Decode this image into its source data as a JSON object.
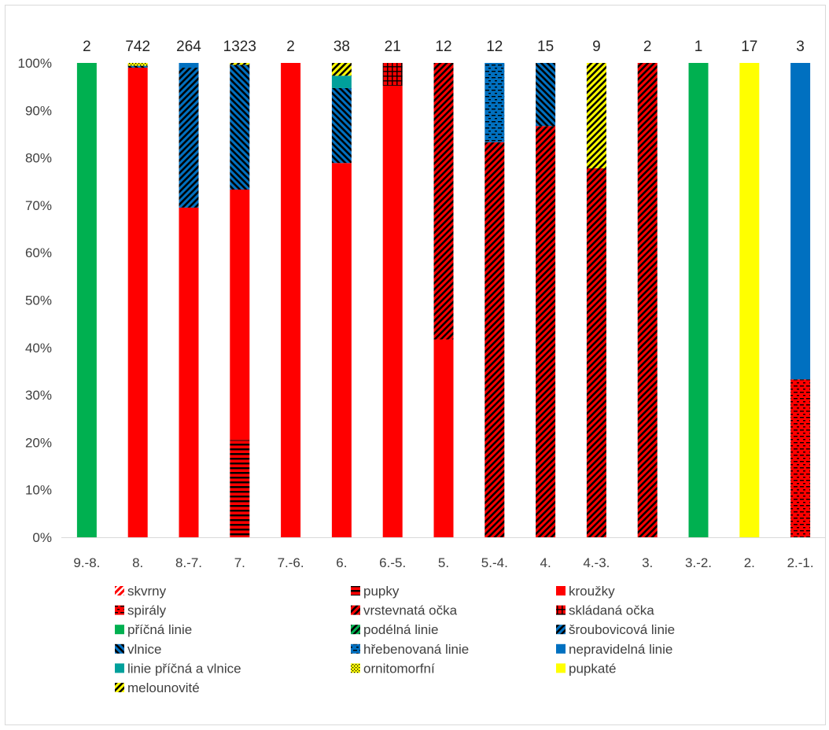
{
  "chart_data": {
    "type": "bar",
    "stacked": "percent",
    "title": "",
    "xlabel": "",
    "ylabel": "",
    "ylim": [
      0,
      100
    ],
    "y_ticks": [
      "0%",
      "10%",
      "20%",
      "30%",
      "40%",
      "50%",
      "60%",
      "70%",
      "80%",
      "90%",
      "100%"
    ],
    "grid": false,
    "legend_position": "bottom",
    "categories": [
      "9.-8.",
      "8.",
      "8.-7.",
      "7.",
      "7.-6.",
      "6.",
      "6.-5.",
      "5.",
      "5.-4.",
      "4.",
      "4.-3.",
      "3.",
      "3.-2.",
      "2.",
      "2.-1."
    ],
    "totals": [
      "2",
      "742",
      "264",
      "1323",
      "2",
      "38",
      "21",
      "12",
      "12",
      "15",
      "9",
      "2",
      "1",
      "17",
      "3"
    ],
    "series": [
      {
        "name": "skvrny",
        "color": "#ff0000",
        "pattern": "diag-white",
        "values": [
          0,
          0,
          0,
          0,
          0,
          0,
          0,
          0,
          0,
          0,
          0,
          0,
          0,
          0,
          0
        ]
      },
      {
        "name": "pupky",
        "color": "#ff0000",
        "pattern": "hstripe-black",
        "values": [
          0,
          0,
          0,
          20.5,
          0,
          0,
          0,
          0,
          0,
          0,
          0,
          0,
          0,
          0,
          0
        ]
      },
      {
        "name": "kroužky",
        "color": "#ff0000",
        "pattern": "solid",
        "values": [
          0,
          99.0,
          69.5,
          52.8,
          100,
          78.9,
          95.2,
          41.7,
          0,
          0,
          0,
          0,
          0,
          0,
          0
        ]
      },
      {
        "name": "spirály",
        "color": "#ff0000",
        "pattern": "dash-black",
        "values": [
          0,
          0,
          0,
          0,
          0,
          0,
          0,
          0,
          0,
          0,
          0,
          0,
          0,
          0,
          33.3
        ]
      },
      {
        "name": "vrstevnatá očka",
        "color": "#ff0000",
        "pattern": "diag-black",
        "values": [
          0,
          0,
          0,
          0,
          0,
          0,
          0,
          58.3,
          83.3,
          86.7,
          77.8,
          100,
          0,
          0,
          0
        ]
      },
      {
        "name": "skládaná očka",
        "color": "#ff0000",
        "pattern": "grid-black",
        "values": [
          0,
          0,
          0,
          0,
          0,
          0,
          4.8,
          0,
          0,
          0,
          0,
          0,
          0,
          0,
          0
        ]
      },
      {
        "name": "příčná linie",
        "color": "#00b050",
        "pattern": "solid",
        "values": [
          100,
          0,
          0,
          0,
          0,
          0,
          0,
          0,
          0,
          0,
          0,
          0,
          100,
          0,
          0
        ]
      },
      {
        "name": "podélná linie",
        "color": "#00b050",
        "pattern": "diag-black",
        "values": [
          0,
          0,
          0,
          0,
          0,
          0,
          0,
          0,
          0,
          0,
          0,
          0,
          0,
          0,
          0
        ]
      },
      {
        "name": "šroubovicová linie",
        "color": "#0070c0",
        "pattern": "diag-black",
        "values": [
          0,
          0,
          29.5,
          0,
          0,
          0,
          0,
          0,
          0,
          0,
          0,
          0,
          0,
          0,
          0
        ]
      },
      {
        "name": "vlnice",
        "color": "#0070c0",
        "pattern": "diag-black-rev",
        "values": [
          0,
          0.4,
          0,
          26.3,
          0,
          15.8,
          0,
          0,
          0,
          13.3,
          0,
          0,
          0,
          0,
          0
        ]
      },
      {
        "name": "hřebenovaná linie",
        "color": "#0070c0",
        "pattern": "dash-black",
        "values": [
          0,
          0,
          0,
          0,
          0,
          0,
          0,
          0,
          16.7,
          0,
          0,
          0,
          0,
          0,
          0
        ]
      },
      {
        "name": "nepravidelná linie",
        "color": "#0070c0",
        "pattern": "solid",
        "values": [
          0,
          0,
          1.0,
          0,
          0,
          0,
          0,
          0,
          0,
          0,
          0,
          0,
          0,
          0,
          66.7
        ]
      },
      {
        "name": "linie příčná a vlnice",
        "color": "#00a09b",
        "pattern": "solid",
        "values": [
          0,
          0,
          0,
          0,
          0,
          2.6,
          0,
          0,
          0,
          0,
          0,
          0,
          0,
          0,
          0
        ]
      },
      {
        "name": "ornitomorfní",
        "color": "#ffff00",
        "pattern": "dots-black",
        "values": [
          0,
          0.6,
          0,
          0,
          0,
          0,
          0,
          0,
          0,
          0,
          0,
          0,
          0,
          0,
          0
        ]
      },
      {
        "name": "pupkaté",
        "color": "#ffff00",
        "pattern": "solid",
        "values": [
          0,
          0,
          0,
          0,
          0,
          0,
          0,
          0,
          0,
          0,
          0,
          0,
          0,
          100,
          0
        ]
      },
      {
        "name": "melounovité",
        "color": "#ffff00",
        "pattern": "diag-black",
        "values": [
          0,
          0,
          0,
          0.4,
          0,
          2.7,
          0,
          0,
          0,
          0,
          22.2,
          0,
          0,
          0,
          0
        ]
      }
    ]
  }
}
